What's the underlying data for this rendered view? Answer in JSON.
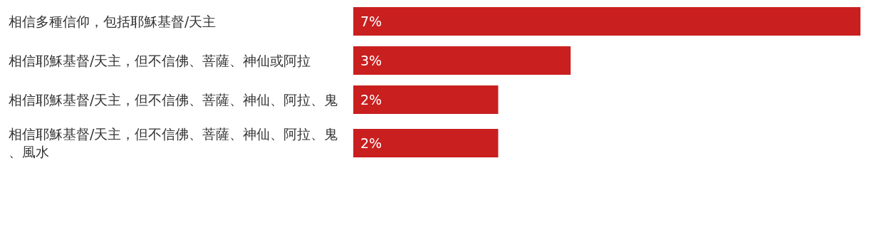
{
  "chart_data": {
    "type": "bar",
    "orientation": "horizontal",
    "categories": [
      "相信多種信仰，包括耶穌基督/天主",
      "相信耶穌基督/天主，但不信佛、菩薩、神仙或阿拉",
      "相信耶穌基督/天主，但不信佛、菩薩、神仙、阿拉、鬼",
      "相信耶穌基督/天主，但不信佛、菩薩、神仙、阿拉、鬼、風水"
    ],
    "values": [
      7,
      3,
      2,
      2
    ],
    "value_labels": [
      "7%",
      "3%",
      "2%",
      "2%"
    ],
    "color": "#c91f1f"
  }
}
